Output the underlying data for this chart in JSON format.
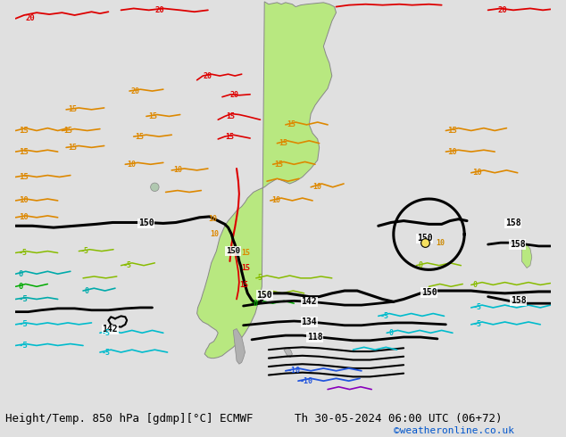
{
  "title_left": "Height/Temp. 850 hPa [gdmp][°C] ECMWF",
  "title_right": "Th 30-05-2024 06:00 UTC (06+72)",
  "credit": "©weatheronline.co.uk",
  "bg_color": "#e0e0e0",
  "land_green": "#b8e880",
  "land_gray": "#c0c0c0",
  "border_color": "#888888",
  "title_fontsize": 9,
  "credit_color": "#0055cc",
  "credit_fontsize": 8,
  "sa_land_x": [
    295,
    300,
    310,
    315,
    320,
    328,
    332,
    338,
    345,
    355,
    365,
    372,
    378,
    380,
    375,
    370,
    365,
    368,
    372,
    375,
    370,
    360,
    355,
    350,
    348,
    352,
    358,
    360,
    358,
    350,
    340,
    332,
    325,
    318,
    310,
    305,
    300,
    295,
    288,
    282,
    278,
    275,
    272,
    268,
    262,
    258,
    252,
    248,
    245,
    242,
    240,
    238,
    235,
    232,
    230,
    228,
    226,
    224,
    222,
    220,
    218,
    216,
    215,
    218,
    222,
    228,
    232,
    235,
    238,
    240,
    238,
    235,
    230,
    228,
    226,
    225,
    224,
    226,
    228,
    232,
    235,
    240,
    245,
    250,
    258,
    265,
    272,
    278,
    284,
    288,
    292,
    295
  ],
  "sa_land_y": [
    2,
    5,
    3,
    5,
    3,
    5,
    8,
    6,
    5,
    4,
    3,
    5,
    8,
    15,
    25,
    40,
    55,
    65,
    75,
    90,
    105,
    118,
    125,
    135,
    148,
    158,
    165,
    175,
    190,
    200,
    210,
    215,
    218,
    215,
    212,
    215,
    218,
    222,
    225,
    228,
    232,
    235,
    240,
    245,
    250,
    255,
    262,
    268,
    275,
    282,
    290,
    298,
    305,
    312,
    320,
    328,
    335,
    342,
    348,
    355,
    360,
    365,
    372,
    378,
    382,
    385,
    388,
    390,
    392,
    395,
    400,
    405,
    408,
    412,
    415,
    418,
    420,
    422,
    424,
    425,
    425,
    424,
    422,
    418,
    412,
    405,
    395,
    385,
    372,
    358,
    340,
    2
  ],
  "patagonia_x": [
    258,
    262,
    265,
    268,
    270,
    272,
    270,
    268,
    265,
    262,
    258
  ],
  "patagonia_y": [
    392,
    390,
    395,
    400,
    408,
    418,
    425,
    430,
    432,
    428,
    392
  ],
  "falkland_x": [
    318,
    322,
    326,
    328,
    326,
    322,
    318
  ],
  "falkland_y": [
    415,
    413,
    415,
    420,
    424,
    422,
    415
  ]
}
